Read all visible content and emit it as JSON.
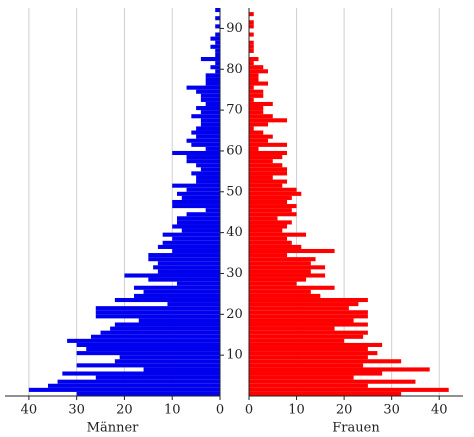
{
  "chart_data": {
    "type": "pyramid",
    "ages": [
      0,
      1,
      2,
      3,
      4,
      5,
      6,
      7,
      8,
      9,
      10,
      11,
      12,
      13,
      14,
      15,
      16,
      17,
      18,
      19,
      20,
      21,
      22,
      23,
      24,
      25,
      26,
      27,
      28,
      29,
      30,
      31,
      32,
      33,
      34,
      35,
      36,
      37,
      38,
      39,
      40,
      41,
      42,
      43,
      44,
      45,
      46,
      47,
      48,
      49,
      50,
      51,
      52,
      53,
      54,
      55,
      56,
      57,
      58,
      59,
      60,
      61,
      62,
      63,
      64,
      65,
      66,
      67,
      68,
      69,
      70,
      71,
      72,
      73,
      74,
      75,
      76,
      77,
      78,
      79,
      80,
      81,
      82,
      83,
      84,
      85,
      86,
      87,
      88,
      89,
      90,
      91,
      92,
      93,
      94
    ],
    "series": [
      {
        "name": "Männer",
        "color": "#0000ee",
        "values": [
          30,
          40,
          36,
          34,
          26,
          33,
          16,
          30,
          22,
          21,
          30,
          28,
          30,
          32,
          27,
          25,
          23,
          22,
          17,
          26,
          26,
          26,
          11,
          22,
          18,
          16,
          18,
          9,
          15,
          20,
          13,
          14,
          13,
          15,
          15,
          10,
          13,
          12,
          10,
          12,
          8,
          10,
          9,
          9,
          7,
          3,
          10,
          10,
          8,
          9,
          7,
          10,
          5,
          5,
          6,
          4,
          5,
          7,
          7,
          10,
          3,
          6,
          7,
          5,
          6,
          5,
          4,
          4,
          6,
          4,
          5,
          3,
          4,
          4,
          5,
          7,
          3,
          3,
          3,
          1,
          2,
          1,
          4,
          1,
          1,
          2,
          1,
          2,
          1,
          0,
          1,
          0,
          1,
          0,
          1
        ]
      },
      {
        "name": "Frauen",
        "color": "#ff0000",
        "values": [
          32,
          42,
          25,
          35,
          22,
          28,
          38,
          24,
          32,
          25,
          27,
          25,
          28,
          20,
          24,
          25,
          18,
          25,
          22,
          25,
          25,
          21,
          23,
          25,
          15,
          13,
          18,
          10,
          12,
          16,
          13,
          16,
          13,
          14,
          8,
          18,
          11,
          9,
          8,
          12,
          7,
          8,
          9,
          6,
          10,
          9,
          10,
          8,
          9,
          11,
          10,
          7,
          8,
          5,
          8,
          8,
          7,
          5,
          7,
          8,
          2,
          8,
          4,
          5,
          3,
          1,
          4,
          8,
          5,
          3,
          3,
          5,
          1,
          3,
          3,
          1,
          4,
          2,
          2,
          4,
          3,
          1,
          2,
          0,
          1,
          1,
          1,
          0,
          1,
          0,
          1,
          1,
          0,
          1,
          0
        ]
      }
    ],
    "xlim": [
      0,
      45
    ],
    "xticks": [
      0,
      10,
      20,
      30,
      40
    ],
    "ylim": [
      0,
      95
    ],
    "yticks": [
      10,
      20,
      30,
      40,
      50,
      60,
      70,
      80,
      90
    ],
    "grid": true
  }
}
